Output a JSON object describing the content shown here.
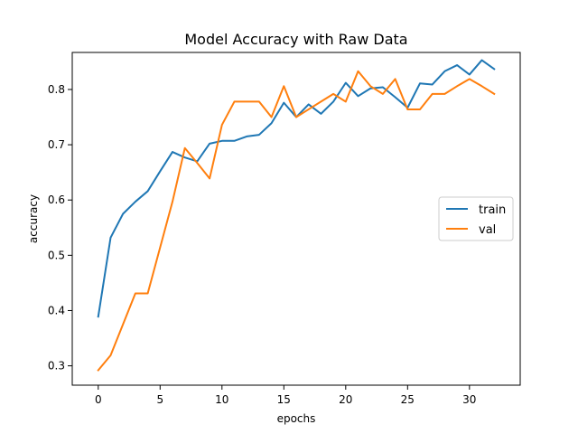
{
  "chart_data": {
    "type": "line",
    "title": "Model Accuracy with Raw Data",
    "xlabel": "epochs",
    "ylabel": "accuracy",
    "xlim": [
      -2.1,
      34.1
    ],
    "ylim": [
      0.265,
      0.867
    ],
    "xticks": [
      0,
      5,
      10,
      15,
      20,
      25,
      30
    ],
    "yticks": [
      0.3,
      0.4,
      0.5,
      0.6,
      0.7,
      0.8
    ],
    "ytick_labels": [
      "0.3",
      "0.4",
      "0.5",
      "0.6",
      "0.7",
      "0.8"
    ],
    "grid": false,
    "legend_position": "center-right",
    "x": [
      0,
      1,
      2,
      3,
      4,
      5,
      6,
      7,
      8,
      9,
      10,
      11,
      12,
      13,
      14,
      15,
      16,
      17,
      18,
      19,
      20,
      21,
      22,
      23,
      24,
      25,
      26,
      27,
      28,
      29,
      30,
      31,
      32
    ],
    "series": [
      {
        "name": "train",
        "color": "#1f77b4",
        "values": [
          0.389,
          0.532,
          0.575,
          0.597,
          0.616,
          0.652,
          0.687,
          0.677,
          0.67,
          0.702,
          0.707,
          0.707,
          0.715,
          0.718,
          0.739,
          0.776,
          0.75,
          0.773,
          0.756,
          0.778,
          0.812,
          0.788,
          0.802,
          0.804,
          0.786,
          0.767,
          0.811,
          0.809,
          0.833,
          0.844,
          0.827,
          0.853,
          0.837
        ]
      },
      {
        "name": "val",
        "color": "#ff7f0e",
        "values": [
          0.292,
          0.319,
          0.375,
          0.431,
          0.431,
          0.514,
          0.597,
          0.694,
          0.667,
          0.639,
          0.736,
          0.778,
          0.778,
          0.778,
          0.75,
          0.806,
          0.75,
          0.764,
          0.778,
          0.792,
          0.778,
          0.833,
          0.806,
          0.792,
          0.819,
          0.764,
          0.764,
          0.792,
          0.792,
          0.806,
          0.819,
          0.806,
          0.792
        ]
      }
    ]
  }
}
